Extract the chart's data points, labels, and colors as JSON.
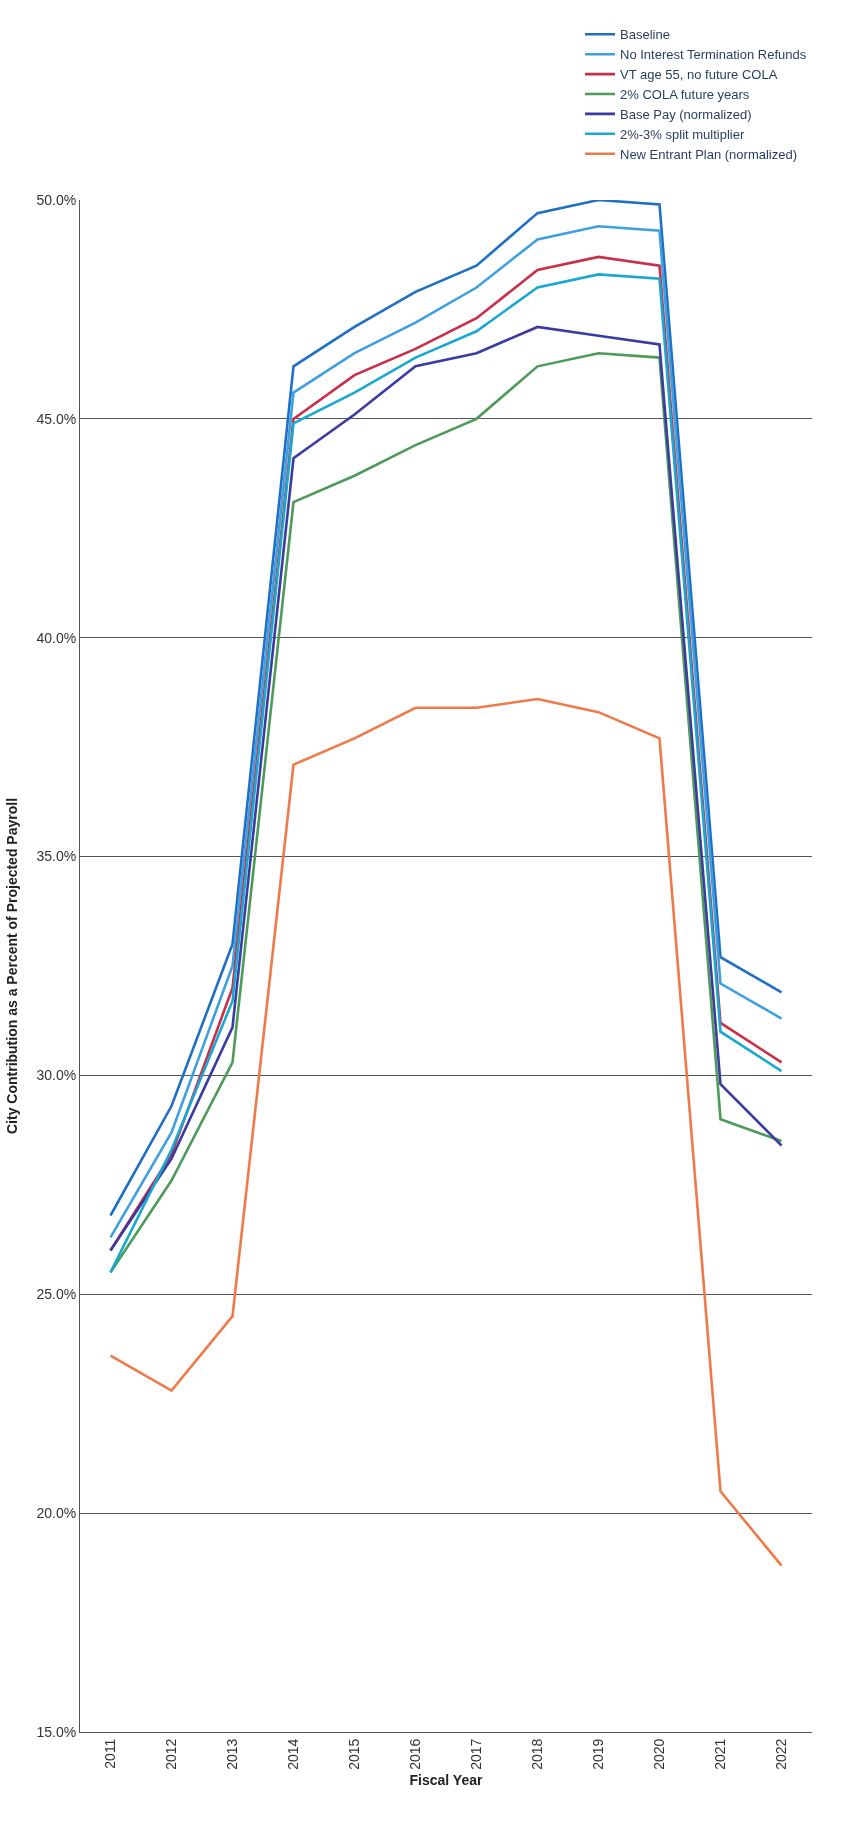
{
  "chart_data": {
    "type": "line",
    "xlabel": "Fiscal Year",
    "ylabel": "City Contribution as a Percent of Projected Payroll",
    "x": [
      2011,
      2012,
      2013,
      2014,
      2015,
      2016,
      2017,
      2018,
      2019,
      2020,
      2021,
      2022
    ],
    "xlim": [
      2010.5,
      2022.5
    ],
    "xticks": [
      2011,
      2012,
      2013,
      2014,
      2015,
      2016,
      2017,
      2018,
      2019,
      2020,
      2021,
      2022
    ],
    "ylim": [
      15,
      50
    ],
    "yticks": [
      {
        "value": 15,
        "label": "15.0%"
      },
      {
        "value": 20,
        "label": "20.0%"
      },
      {
        "value": 25,
        "label": "25.0%"
      },
      {
        "value": 30,
        "label": "30.0%"
      },
      {
        "value": 35,
        "label": "35.0%"
      },
      {
        "value": 40,
        "label": "40.0%"
      },
      {
        "value": 45,
        "label": "45.0%"
      },
      {
        "value": 50,
        "label": "50.0%"
      }
    ],
    "grid": "y",
    "legend": "top right",
    "marker": "none",
    "line_style": "solid",
    "series": [
      {
        "name": "Baseline",
        "color": "#1f6fc5",
        "values": [
          26.8,
          29.3,
          33.0,
          46.2,
          47.1,
          47.9,
          48.5,
          49.7,
          50.0,
          49.9,
          32.7,
          31.9
        ]
      },
      {
        "name": "No Interest Termination Refunds",
        "color": "#3fa0e0",
        "values": [
          26.3,
          28.7,
          32.5,
          45.6,
          46.5,
          47.2,
          48.0,
          49.1,
          49.4,
          49.3,
          32.1,
          31.3
        ]
      },
      {
        "name": "VT age 55, no future COLA",
        "color": "#c8304a",
        "values": [
          26.0,
          28.2,
          32.0,
          45.0,
          46.0,
          46.6,
          47.3,
          48.4,
          48.7,
          48.5,
          31.2,
          30.3
        ]
      },
      {
        "name": "2% COLA future years",
        "color": "#4e9a5a",
        "values": [
          25.5,
          27.6,
          30.3,
          43.1,
          43.7,
          44.4,
          45.0,
          46.2,
          46.5,
          46.4,
          29.0,
          28.5
        ]
      },
      {
        "name": "Base Pay (normalized)",
        "color": "#3b3ba0",
        "values": [
          26.0,
          28.1,
          31.1,
          44.1,
          45.1,
          46.2,
          46.5,
          47.1,
          46.9,
          46.7,
          29.8,
          28.4
        ]
      },
      {
        "name": "2%-3% split multiplier",
        "color": "#1ba8d0",
        "values": [
          25.5,
          28.3,
          31.7,
          44.9,
          45.6,
          46.4,
          47.0,
          48.0,
          48.3,
          48.2,
          31.0,
          30.1
        ]
      },
      {
        "name": "New Entrant Plan (normalized)",
        "color": "#ee7a4a",
        "values": [
          23.6,
          22.8,
          24.5,
          37.1,
          37.7,
          38.4,
          38.4,
          38.6,
          38.3,
          37.7,
          20.5,
          18.8
        ]
      }
    ]
  }
}
